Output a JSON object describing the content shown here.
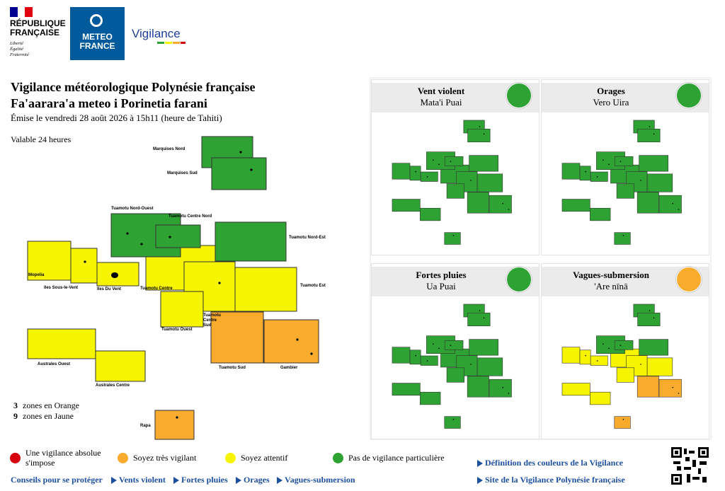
{
  "header": {
    "republique": "RÉPUBLIQUE\nFRANÇAISE",
    "devise": [
      "Liberté",
      "Égalité",
      "Fraternité"
    ],
    "meteo_france": "METEO\nFRANCE",
    "vigilance": "Vigilance"
  },
  "title": {
    "line1": "Vigilance météorologique Polynésie française",
    "line2": "Fa'aarara'a meteo i Porinetia farani",
    "emission": "Émise le vendredi 28 août 2026 à 15h11 (heure de Tahiti)",
    "validity": "Valable 24 heures"
  },
  "map": {
    "zones": [
      {
        "name": "Marquises Nord",
        "color": "#2ea232"
      },
      {
        "name": "Marquises Sud",
        "color": "#2ea232"
      },
      {
        "name": "Tuamotu Nord-Ouest",
        "color": "#2ea232"
      },
      {
        "name": "Tuamotu Centre Nord",
        "color": "#2ea232"
      },
      {
        "name": "Tuamotu Nord-Est",
        "color": "#2ea232"
      },
      {
        "name": "Mopelia",
        "color": "#f7f400"
      },
      {
        "name": "Iles Sous-le-Vent",
        "color": "#f7f400"
      },
      {
        "name": "Iles Du Vent",
        "color": "#f7f400"
      },
      {
        "name": "Tuamotu Centre",
        "color": "#f7f400"
      },
      {
        "name": "Tuamotu Est",
        "color": "#f7f400"
      },
      {
        "name": "Tuamotu Ouest",
        "color": "#f7f400"
      },
      {
        "name": "Tuamotu Centre Sud",
        "color": "#f7f400"
      },
      {
        "name": "Tuamotu Sud",
        "color": "#f8ab2d"
      },
      {
        "name": "Gambier",
        "color": "#f8ab2d"
      },
      {
        "name": "Australes Ouest",
        "color": "#f7f400"
      },
      {
        "name": "Australes Centre",
        "color": "#f7f400"
      },
      {
        "name": "Rapa",
        "color": "#f8ab2d"
      }
    ]
  },
  "summary": [
    {
      "count": 3,
      "text": "zones en Orange"
    },
    {
      "count": 9,
      "text": "zones en Jaune"
    }
  ],
  "panels": [
    {
      "title": "Vent violent",
      "subtitle": "Mata'i Puai",
      "icon_color": "#2ea232",
      "zone_colors": [
        "#2ea232",
        "#2ea232",
        "#2ea232",
        "#2ea232",
        "#2ea232",
        "#2ea232",
        "#2ea232",
        "#2ea232",
        "#2ea232",
        "#2ea232",
        "#2ea232",
        "#2ea232",
        "#2ea232",
        "#2ea232",
        "#2ea232",
        "#2ea232",
        "#2ea232"
      ]
    },
    {
      "title": "Orages",
      "subtitle": "Vero Uira",
      "icon_color": "#2ea232",
      "zone_colors": [
        "#2ea232",
        "#2ea232",
        "#2ea232",
        "#2ea232",
        "#2ea232",
        "#2ea232",
        "#2ea232",
        "#2ea232",
        "#2ea232",
        "#2ea232",
        "#2ea232",
        "#2ea232",
        "#2ea232",
        "#2ea232",
        "#2ea232",
        "#2ea232",
        "#2ea232"
      ]
    },
    {
      "title": "Fortes pluies",
      "subtitle": "Ua Puai",
      "icon_color": "#2ea232",
      "zone_colors": [
        "#2ea232",
        "#2ea232",
        "#2ea232",
        "#2ea232",
        "#2ea232",
        "#2ea232",
        "#2ea232",
        "#2ea232",
        "#2ea232",
        "#2ea232",
        "#2ea232",
        "#2ea232",
        "#2ea232",
        "#2ea232",
        "#2ea232",
        "#2ea232",
        "#2ea232"
      ]
    },
    {
      "title": "Vagues-submersion",
      "subtitle": "'Are nīnā",
      "icon_color": "#f8ab2d",
      "zone_colors": [
        "#2ea232",
        "#2ea232",
        "#2ea232",
        "#2ea232",
        "#2ea232",
        "#f7f400",
        "#f7f400",
        "#f7f400",
        "#f7f400",
        "#f7f400",
        "#f7f400",
        "#f7f400",
        "#f8ab2d",
        "#f8ab2d",
        "#f7f400",
        "#f7f400",
        "#f8ab2d"
      ]
    }
  ],
  "legend": [
    {
      "label": "Une vigilance absolue s'impose",
      "color": "#d7000f"
    },
    {
      "label": "Soyez très vigilant",
      "color": "#f8ab2d"
    },
    {
      "label": "Soyez attentif",
      "color": "#f7f400"
    },
    {
      "label": "Pas de vigilance particulière",
      "color": "#2ea232"
    }
  ],
  "links": {
    "advice": "Conseils pour se protéger",
    "phenomena": [
      "Vents violent",
      "Fortes pluies",
      "Orages",
      "Vagues-submersion"
    ],
    "info": [
      "Définition des couleurs de la Vigilance",
      "Site de la Vigilance Polynésie française"
    ]
  }
}
